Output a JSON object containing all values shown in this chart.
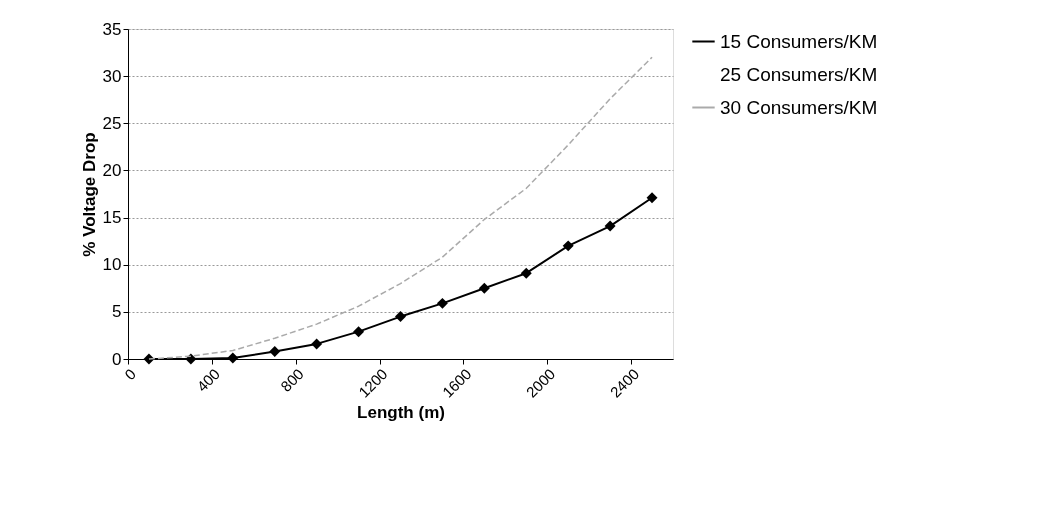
{
  "chart_data": {
    "type": "line",
    "xlabel": "Length (m)",
    "ylabel": "% Voltage Drop",
    "x": [
      100,
      300,
      500,
      700,
      900,
      1100,
      1300,
      1500,
      1700,
      1900,
      2100,
      2300,
      2500
    ],
    "xlim": [
      0,
      2600
    ],
    "xticks": [
      0,
      400,
      800,
      1200,
      1600,
      2000,
      2400
    ],
    "ylim": [
      0,
      35
    ],
    "yticks": [
      0,
      5,
      10,
      15,
      20,
      25,
      30,
      35
    ],
    "grid": "y",
    "legend": "right",
    "series": [
      {
        "name": "15 Consumers/KM",
        "color": "#000000",
        "marker": "diamond",
        "line_style": "solid",
        "values": [
          0,
          0,
          0.1,
          0.8,
          1.6,
          2.9,
          4.5,
          5.9,
          7.5,
          9.1,
          12.0,
          14.1,
          17.1
        ]
      },
      {
        "name": "25 Consumers/KM",
        "color": null,
        "marker": "none",
        "line_style": "solid",
        "values": [
          null,
          null,
          null,
          null,
          null,
          null,
          null,
          null,
          null,
          null,
          null,
          null,
          null
        ]
      },
      {
        "name": "30 Consumers/KM",
        "color": "#aaaaaa",
        "marker": "none",
        "line_style": "dashed",
        "values": [
          0,
          0.3,
          0.9,
          2.2,
          3.7,
          5.6,
          8.0,
          10.8,
          14.8,
          18.1,
          22.7,
          27.6,
          32.0
        ]
      }
    ]
  }
}
